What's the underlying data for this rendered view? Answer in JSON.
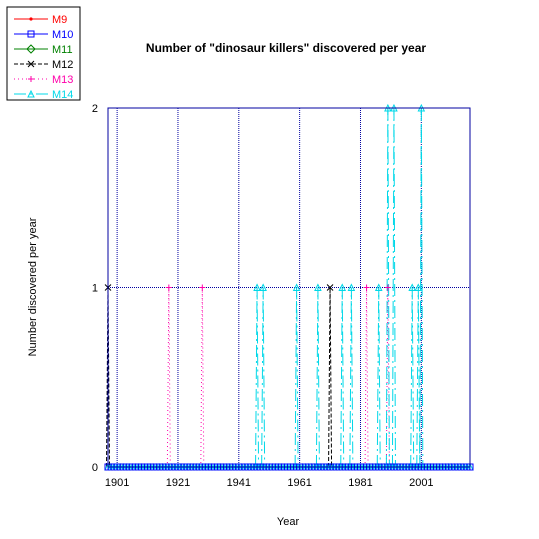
{
  "chart_data": {
    "type": "line",
    "title": "Number of \"dinosaur killers\" discovered per year",
    "xlabel": "Year",
    "ylabel": "Number discovered per year",
    "xlim": [
      1898,
      2017
    ],
    "ylim": [
      0,
      2
    ],
    "x_ticks": [
      1901,
      1921,
      1941,
      1961,
      1981,
      2001
    ],
    "y_ticks": [
      0,
      1,
      2
    ],
    "grid": true,
    "legend_position": "top-left",
    "series": [
      {
        "name": "M9",
        "color": "#ff0000",
        "dash": "solid",
        "marker": "dot",
        "events": []
      },
      {
        "name": "M10",
        "color": "#0000ff",
        "dash": "solid",
        "marker": "square",
        "events": []
      },
      {
        "name": "M11",
        "color": "#008000",
        "dash": "solid",
        "marker": "diamond",
        "events": []
      },
      {
        "name": "M12",
        "color": "#000000",
        "dash": "dashed",
        "marker": "x",
        "events": [
          {
            "x": 1898,
            "y": 1
          },
          {
            "x": 1971,
            "y": 1
          }
        ]
      },
      {
        "name": "M13",
        "color": "#ff00aa",
        "dash": "dotted",
        "marker": "plus",
        "events": [
          {
            "x": 1918,
            "y": 1
          },
          {
            "x": 1929,
            "y": 1
          },
          {
            "x": 1983,
            "y": 1
          },
          {
            "x": 1990,
            "y": 1
          }
        ]
      },
      {
        "name": "M14",
        "color": "#00d8e8",
        "dash": "dashdot",
        "marker": "triangle",
        "events": [
          {
            "x": 1947,
            "y": 1
          },
          {
            "x": 1949,
            "y": 1
          },
          {
            "x": 1960,
            "y": 1
          },
          {
            "x": 1967,
            "y": 1
          },
          {
            "x": 1975,
            "y": 1
          },
          {
            "x": 1978,
            "y": 1
          },
          {
            "x": 1987,
            "y": 1
          },
          {
            "x": 1990,
            "y": 2
          },
          {
            "x": 1992,
            "y": 2
          },
          {
            "x": 1998,
            "y": 1
          },
          {
            "x": 2000,
            "y": 1
          },
          {
            "x": 2001,
            "y": 2
          }
        ]
      }
    ]
  }
}
